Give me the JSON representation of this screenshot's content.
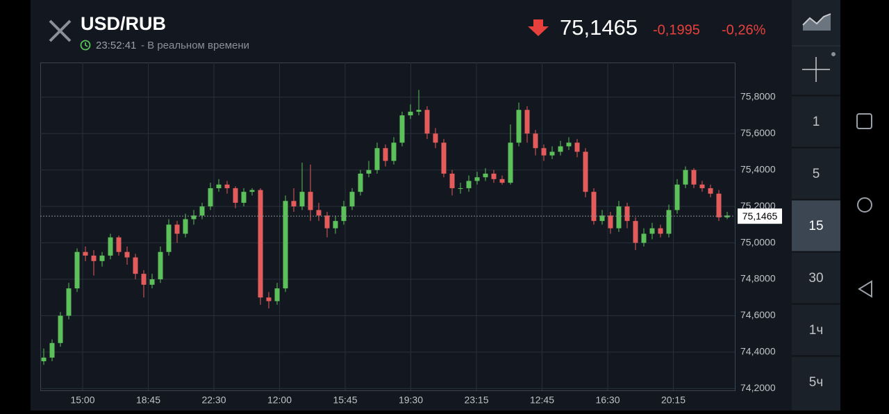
{
  "header": {
    "pair": "USD/RUB",
    "time": "23:52:41",
    "status": "- В реальном времени",
    "change": "-0,1995",
    "change_pct": "-0,26%"
  },
  "sidebar": {
    "timeframes": [
      "1",
      "5",
      "15",
      "30",
      "1ч",
      "5ч"
    ],
    "selected": 2
  },
  "chart_data": {
    "type": "candlestick",
    "up_color": "#5cc15a",
    "down_color": "#e35b5b",
    "grid": true,
    "current_price": {
      "value": 75.1465,
      "label": "75,1465"
    },
    "ylim": [
      74.19,
      75.99
    ],
    "yticks": [
      {
        "value": 74.2,
        "label": "74,2000"
      },
      {
        "value": 74.4,
        "label": "74,4000"
      },
      {
        "value": 74.6,
        "label": "74,6000"
      },
      {
        "value": 74.8,
        "label": "74,8000"
      },
      {
        "value": 75.0,
        "label": "75,0000"
      },
      {
        "value": 75.2,
        "label": "75,2000"
      },
      {
        "value": 75.4,
        "label": "75,4000"
      },
      {
        "value": 75.6,
        "label": "75,6000"
      },
      {
        "value": 75.8,
        "label": "75,8000"
      }
    ],
    "xticks": [
      "15:00",
      "18:45",
      "22:30",
      "12:00",
      "15:45",
      "19:30",
      "23:15",
      "12:45",
      "16:30",
      "20:15"
    ],
    "open": [
      74.35,
      74.37,
      74.45,
      74.6,
      74.75,
      74.95,
      74.93,
      74.9,
      74.93,
      75.03,
      74.95,
      74.92,
      74.83,
      74.77,
      74.8,
      74.95,
      75.1,
      75.05,
      75.13,
      75.15,
      75.2,
      75.3,
      75.32,
      75.3,
      75.22,
      75.28,
      75.29,
      74.7,
      74.68,
      74.75,
      75.23,
      75.2,
      75.28,
      75.18,
      75.15,
      75.08,
      75.12,
      75.2,
      75.28,
      75.38,
      75.4,
      75.52,
      75.45,
      75.55,
      75.7,
      75.72,
      75.73,
      75.6,
      75.55,
      75.38,
      75.3,
      75.3,
      75.34,
      75.36,
      75.38,
      75.35,
      75.33,
      75.55,
      75.73,
      75.6,
      75.52,
      75.48,
      75.5,
      75.53,
      75.55,
      75.5,
      75.28,
      75.12,
      75.15,
      75.08,
      75.2,
      75.12,
      75.0,
      75.05,
      75.08,
      75.05,
      75.18,
      75.32,
      75.4,
      75.32,
      75.3,
      75.27,
      75.14
    ],
    "high": [
      74.42,
      74.47,
      74.62,
      74.78,
      74.97,
      74.98,
      74.96,
      74.95,
      75.05,
      75.04,
      74.98,
      74.94,
      74.85,
      74.83,
      74.98,
      75.13,
      75.12,
      75.16,
      75.18,
      75.22,
      75.33,
      75.35,
      75.34,
      75.31,
      75.3,
      75.3,
      75.3,
      74.73,
      74.78,
      75.26,
      75.3,
      75.44,
      75.43,
      75.22,
      75.17,
      75.15,
      75.23,
      75.3,
      75.4,
      75.45,
      75.55,
      75.54,
      75.58,
      75.72,
      75.76,
      75.84,
      75.75,
      75.63,
      75.57,
      75.4,
      75.33,
      75.37,
      75.39,
      75.41,
      75.4,
      75.37,
      75.65,
      75.77,
      75.75,
      75.62,
      75.54,
      75.53,
      75.56,
      75.58,
      75.57,
      75.52,
      75.3,
      75.18,
      75.17,
      75.23,
      75.22,
      75.14,
      75.08,
      75.11,
      75.1,
      75.21,
      75.35,
      75.42,
      75.41,
      75.34,
      75.32,
      75.29,
      75.17
    ],
    "low": [
      74.33,
      74.35,
      74.43,
      74.58,
      74.73,
      74.9,
      74.82,
      74.87,
      74.91,
      74.93,
      74.88,
      74.8,
      74.7,
      74.75,
      74.78,
      74.93,
      75.0,
      75.03,
      75.1,
      75.13,
      75.18,
      75.28,
      75.27,
      75.19,
      75.2,
      75.26,
      74.66,
      74.64,
      74.66,
      74.73,
      75.17,
      75.18,
      75.12,
      75.12,
      75.03,
      75.05,
      75.1,
      75.18,
      75.26,
      75.36,
      75.38,
      75.42,
      75.43,
      75.53,
      75.68,
      75.7,
      75.57,
      75.52,
      75.36,
      75.26,
      75.27,
      75.28,
      75.32,
      75.34,
      75.33,
      75.32,
      75.32,
      75.53,
      75.55,
      75.48,
      75.45,
      75.46,
      75.48,
      75.51,
      75.47,
      75.25,
      75.1,
      75.1,
      75.05,
      75.06,
      75.08,
      74.96,
      74.98,
      75.02,
      75.03,
      75.03,
      75.16,
      75.3,
      75.3,
      75.28,
      75.25,
      75.12,
      75.13
    ],
    "close": [
      74.37,
      74.45,
      74.6,
      74.75,
      74.95,
      74.93,
      74.9,
      74.93,
      75.03,
      74.95,
      74.92,
      74.83,
      74.77,
      74.8,
      74.95,
      75.1,
      75.05,
      75.13,
      75.15,
      75.2,
      75.3,
      75.32,
      75.3,
      75.22,
      75.28,
      75.29,
      74.7,
      74.68,
      74.75,
      75.23,
      75.2,
      75.28,
      75.18,
      75.15,
      75.08,
      75.12,
      75.2,
      75.28,
      75.38,
      75.4,
      75.52,
      75.45,
      75.55,
      75.7,
      75.72,
      75.73,
      75.6,
      75.55,
      75.38,
      75.3,
      75.3,
      75.34,
      75.36,
      75.38,
      75.35,
      75.33,
      75.55,
      75.73,
      75.6,
      75.52,
      75.48,
      75.5,
      75.53,
      75.55,
      75.5,
      75.28,
      75.12,
      75.15,
      75.08,
      75.2,
      75.12,
      75.0,
      75.05,
      75.08,
      75.05,
      75.18,
      75.32,
      75.4,
      75.32,
      75.3,
      75.27,
      75.14,
      75.15
    ]
  }
}
